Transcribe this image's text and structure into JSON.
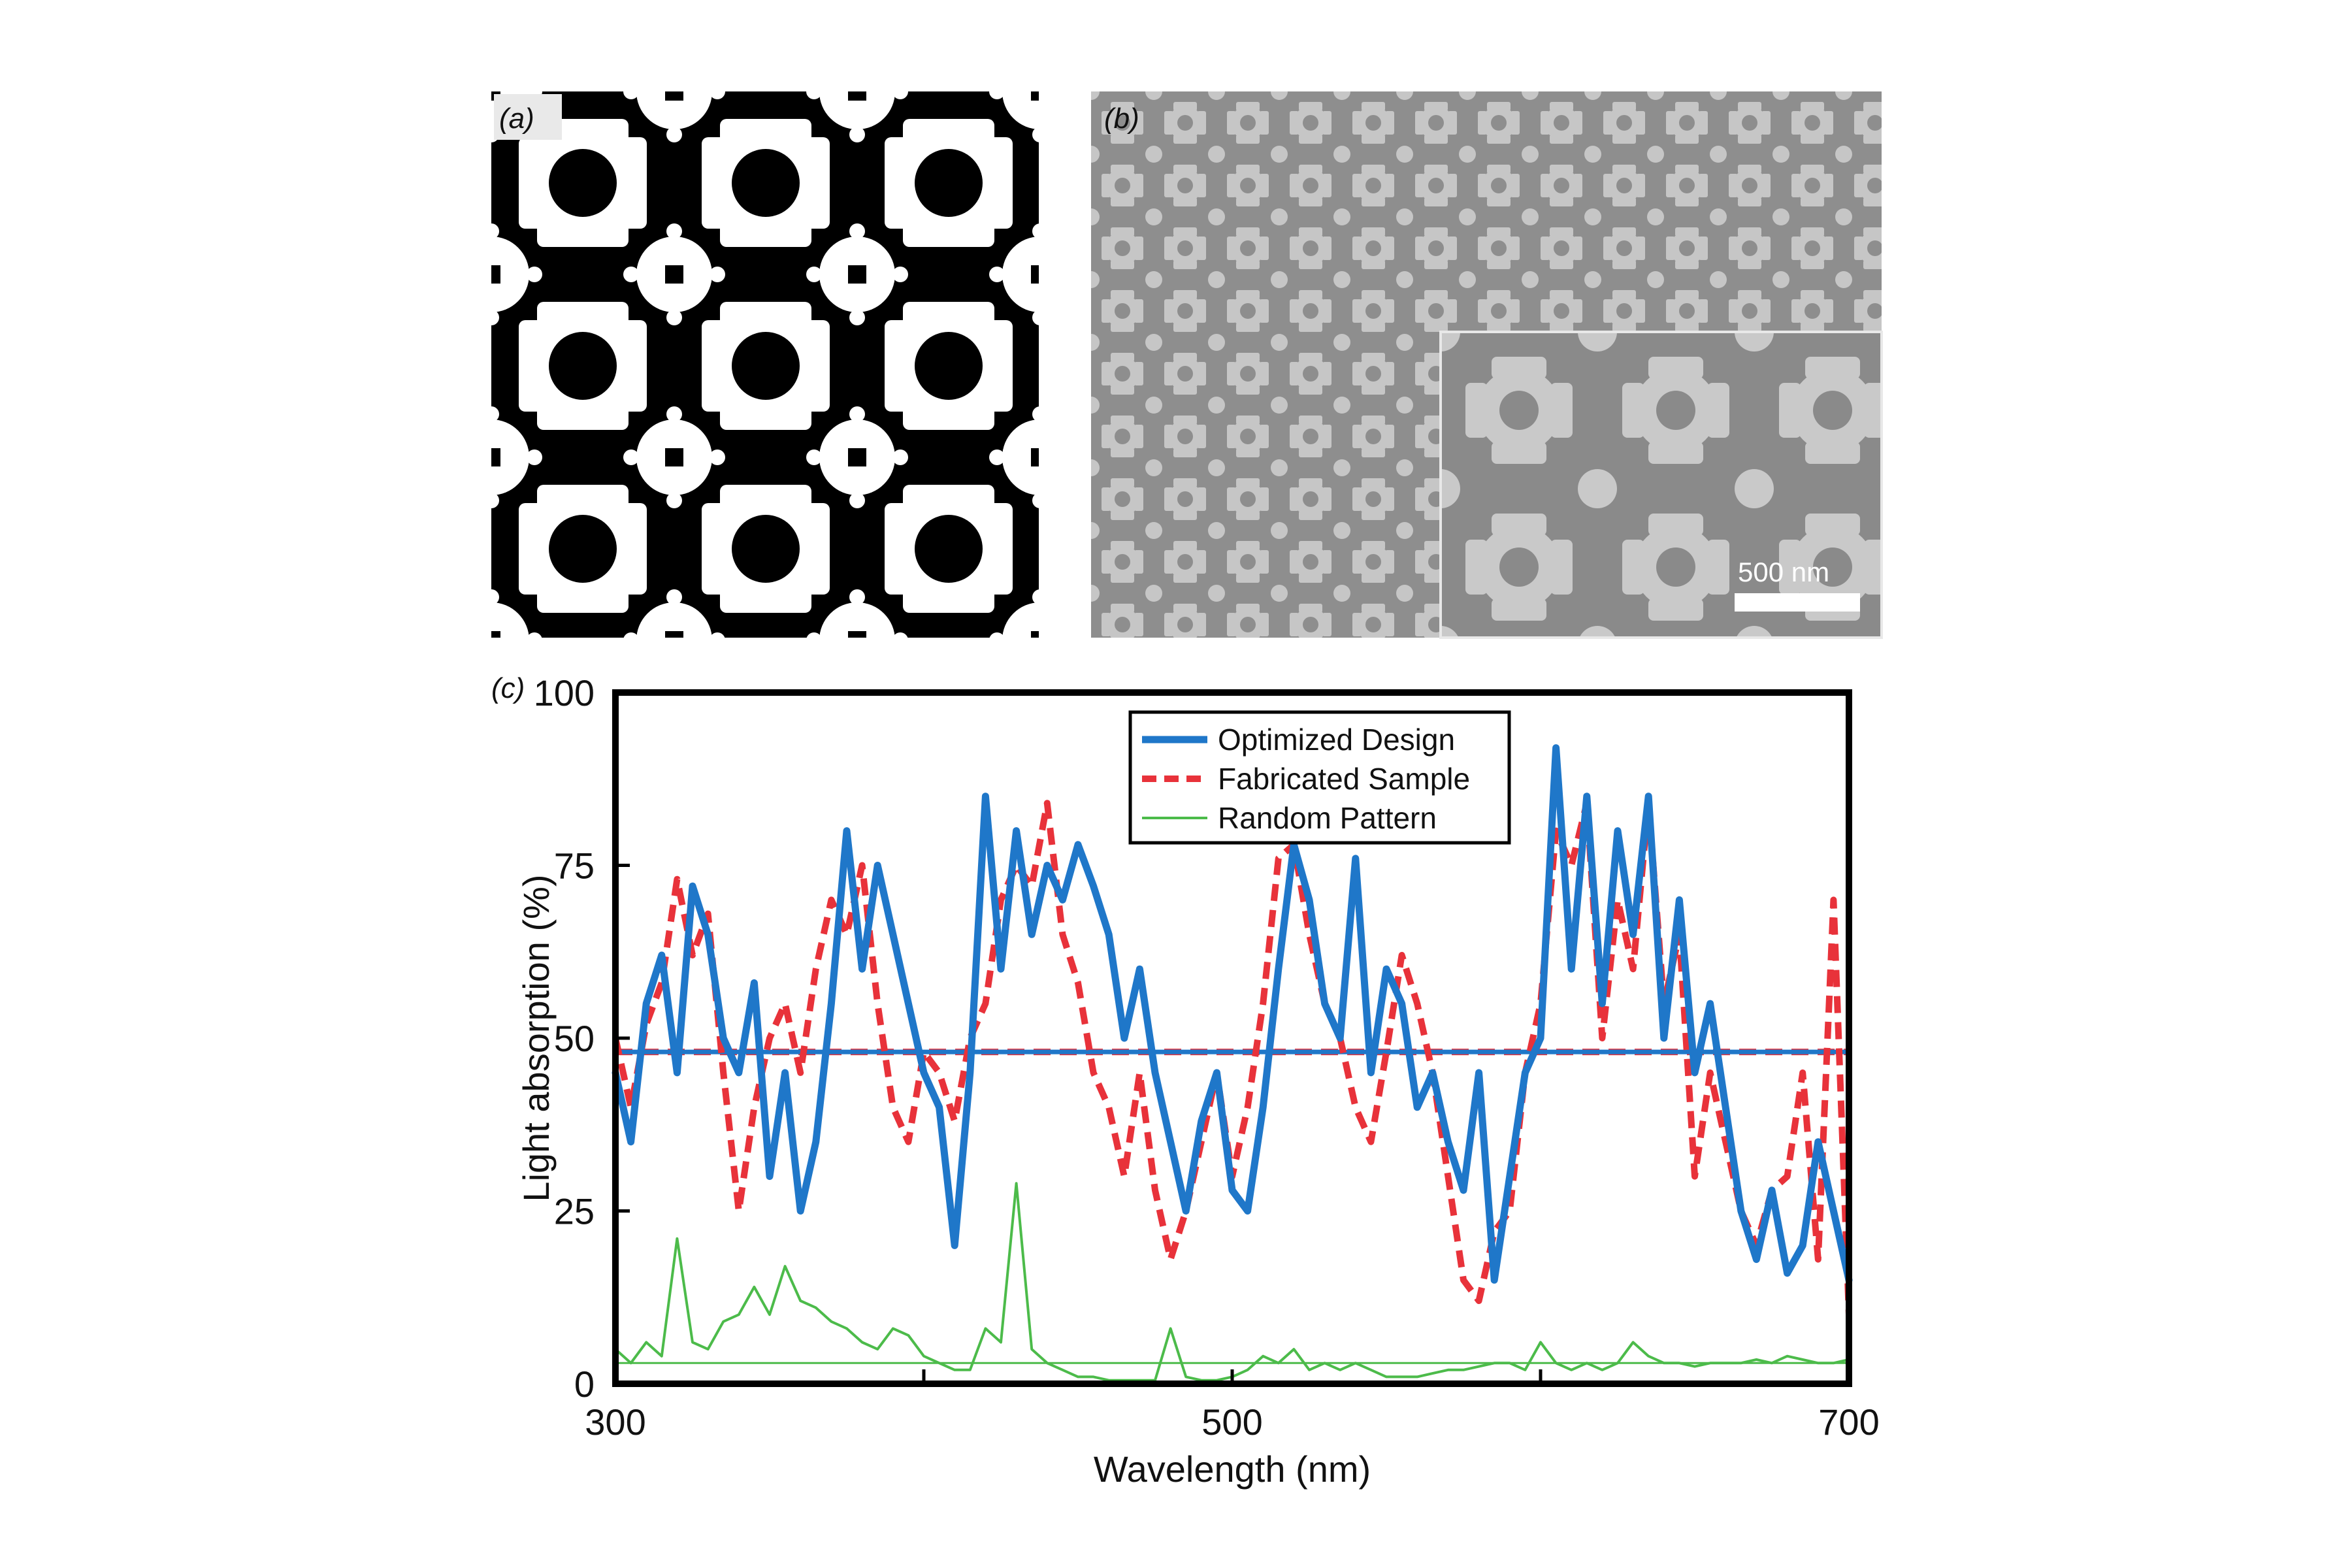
{
  "panels": {
    "a": {
      "label": "(a)"
    },
    "b": {
      "label": "(b)",
      "scale_bar": "500 nm"
    },
    "c": {
      "label": "(c)"
    }
  },
  "colors": {
    "optimized": "#1f77c9",
    "fabricated": "#e8323a",
    "random": "#4cbb4a",
    "pattern_bg": "#000000",
    "pattern_fg": "#ffffff",
    "sem_bg": "#8e8e8e",
    "sem_fg": "#c6c6c6"
  },
  "chart_data": {
    "type": "line",
    "xlabel": "Wavelength (nm)",
    "ylabel": "Light absorption (%)",
    "xlim": [
      300,
      700
    ],
    "ylim": [
      0,
      100
    ],
    "xticks": [
      300,
      500,
      700
    ],
    "yticks": [
      0,
      25,
      50,
      75,
      100
    ],
    "grid": false,
    "legend_position": "top-center",
    "series": [
      {
        "name": "Optimized Design",
        "style": "solid-thick",
        "x": [
          300,
          305,
          310,
          315,
          320,
          325,
          330,
          335,
          340,
          345,
          350,
          355,
          360,
          365,
          370,
          375,
          380,
          385,
          390,
          395,
          400,
          405,
          410,
          415,
          420,
          425,
          430,
          435,
          440,
          445,
          450,
          455,
          460,
          465,
          470,
          475,
          480,
          485,
          490,
          495,
          500,
          505,
          510,
          515,
          520,
          525,
          530,
          535,
          540,
          545,
          550,
          555,
          560,
          565,
          570,
          575,
          580,
          585,
          590,
          595,
          600,
          605,
          610,
          615,
          620,
          625,
          630,
          635,
          640,
          645,
          650,
          655,
          660,
          665,
          670,
          675,
          680,
          685,
          690,
          695,
          700
        ],
        "y": [
          45,
          35,
          55,
          62,
          45,
          72,
          65,
          50,
          45,
          58,
          30,
          45,
          25,
          35,
          55,
          80,
          60,
          75,
          65,
          55,
          45,
          40,
          20,
          45,
          85,
          60,
          80,
          65,
          75,
          70,
          78,
          72,
          65,
          50,
          60,
          45,
          35,
          25,
          38,
          45,
          28,
          25,
          40,
          60,
          78,
          70,
          55,
          50,
          76,
          45,
          60,
          55,
          40,
          45,
          35,
          28,
          45,
          15,
          30,
          45,
          50,
          92,
          60,
          85,
          55,
          80,
          65,
          85,
          50,
          70,
          45,
          55,
          40,
          25,
          18,
          28,
          16,
          20,
          35,
          25,
          15
        ]
      },
      {
        "name": "Fabricated Sample",
        "style": "dashed",
        "x": [
          300,
          305,
          310,
          315,
          320,
          325,
          330,
          335,
          340,
          345,
          350,
          355,
          360,
          365,
          370,
          375,
          380,
          385,
          390,
          395,
          400,
          405,
          410,
          415,
          420,
          425,
          430,
          435,
          440,
          445,
          450,
          455,
          460,
          465,
          470,
          475,
          480,
          485,
          490,
          495,
          500,
          505,
          510,
          515,
          520,
          525,
          530,
          535,
          540,
          545,
          550,
          555,
          560,
          565,
          570,
          575,
          580,
          585,
          590,
          595,
          600,
          605,
          610,
          615,
          620,
          625,
          630,
          635,
          640,
          645,
          650,
          655,
          660,
          665,
          670,
          675,
          680,
          685,
          690,
          695,
          700
        ],
        "y": [
          50,
          40,
          52,
          58,
          73,
          62,
          68,
          45,
          25,
          40,
          50,
          55,
          45,
          60,
          70,
          65,
          75,
          55,
          40,
          35,
          48,
          45,
          38,
          50,
          55,
          70,
          75,
          72,
          84,
          65,
          58,
          45,
          40,
          30,
          45,
          28,
          18,
          25,
          35,
          45,
          30,
          40,
          55,
          76,
          78,
          65,
          55,
          50,
          40,
          35,
          48,
          62,
          55,
          45,
          30,
          15,
          12,
          22,
          25,
          45,
          55,
          80,
          75,
          84,
          50,
          70,
          60,
          84,
          55,
          65,
          30,
          45,
          35,
          25,
          20,
          28,
          30,
          45,
          18,
          70,
          10
        ]
      },
      {
        "name": "Random Pattern",
        "style": "solid-thin",
        "x": [
          300,
          305,
          310,
          315,
          320,
          325,
          330,
          335,
          340,
          345,
          350,
          355,
          360,
          365,
          370,
          375,
          380,
          385,
          390,
          395,
          400,
          405,
          410,
          415,
          420,
          425,
          430,
          435,
          440,
          445,
          450,
          455,
          460,
          465,
          470,
          475,
          480,
          485,
          490,
          495,
          500,
          505,
          510,
          515,
          520,
          525,
          530,
          535,
          540,
          545,
          550,
          555,
          560,
          565,
          570,
          575,
          580,
          585,
          590,
          595,
          600,
          605,
          610,
          615,
          620,
          625,
          630,
          635,
          640,
          645,
          650,
          655,
          660,
          665,
          670,
          675,
          680,
          685,
          690,
          695,
          700
        ],
        "y": [
          5,
          3,
          6,
          4,
          21,
          6,
          5,
          9,
          10,
          14,
          10,
          17,
          12,
          11,
          9,
          8,
          6,
          5,
          8,
          7,
          4,
          3,
          2,
          2,
          8,
          6,
          29,
          5,
          3,
          2,
          1,
          1,
          0.5,
          0.5,
          0.5,
          0.5,
          8,
          1,
          0.5,
          0.5,
          1,
          2,
          4,
          3,
          5,
          2,
          3,
          2,
          3,
          2,
          1,
          1,
          1,
          1.5,
          2,
          2,
          2.5,
          3,
          3,
          2,
          6,
          3,
          2,
          3,
          2,
          3,
          6,
          4,
          3,
          3,
          2.5,
          3,
          3,
          3,
          3.5,
          3,
          4,
          3.5,
          3,
          3,
          3.5
        ]
      }
    ],
    "reference_level": 48
  }
}
